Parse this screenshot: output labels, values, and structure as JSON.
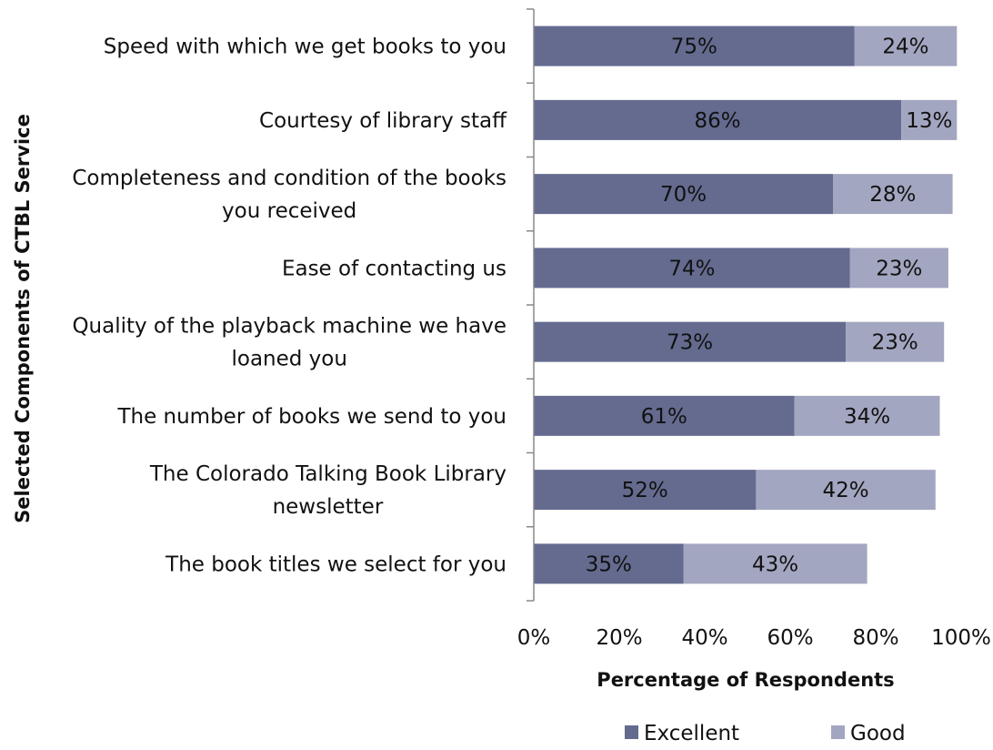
{
  "chart_data": {
    "type": "bar",
    "orientation": "horizontal",
    "stacked": true,
    "categories": [
      "Speed with which we get books to you",
      "Courtesy of library staff",
      "Completeness and condition of the books you received",
      "Ease of contacting us",
      "Quality of the playback machine we have loaned you",
      "The number of books we send to you",
      "The Colorado Talking Book Library newsletter",
      "The book titles we select for you"
    ],
    "category_lines": [
      [
        "Speed with which we get books to you"
      ],
      [
        "Courtesy of library staff"
      ],
      [
        "Completeness and condition of the books",
        "you received"
      ],
      [
        "Ease of contacting us"
      ],
      [
        "Quality of the playback machine we have",
        "loaned you"
      ],
      [
        "The number of books we send to you"
      ],
      [
        "The Colorado Talking Book Library",
        "newsletter"
      ],
      [
        "The book titles we select for you"
      ]
    ],
    "series": [
      {
        "name": "Excellent",
        "color": "#646b8f",
        "values": [
          75,
          86,
          70,
          74,
          73,
          61,
          52,
          35
        ],
        "labels": [
          "75%",
          "86%",
          "70%",
          "74%",
          "73%",
          "61%",
          "52%",
          "35%"
        ]
      },
      {
        "name": "Good",
        "color": "#a3a6c0",
        "values": [
          24,
          13,
          28,
          23,
          23,
          34,
          42,
          43
        ],
        "labels": [
          "24%",
          "13%",
          "28%",
          "23%",
          "23%",
          "34%",
          "42%",
          "43%"
        ]
      }
    ],
    "xlabel": "Percentage of Respondents",
    "ylabel": "Selected Components of CTBL Service",
    "xlim": [
      0,
      100
    ],
    "xticks": [
      0,
      20,
      40,
      60,
      80,
      100
    ],
    "xtick_labels": [
      "0%",
      "20%",
      "40%",
      "60%",
      "80%",
      "100%"
    ],
    "grid": false,
    "legend_position": "bottom"
  }
}
